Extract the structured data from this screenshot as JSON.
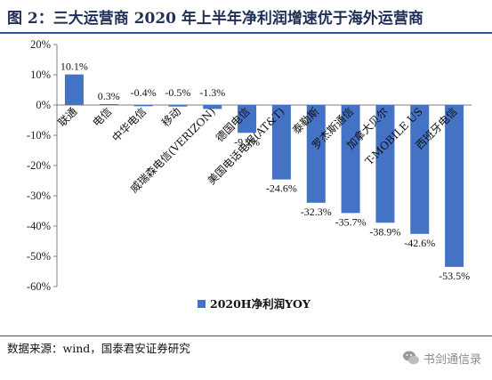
{
  "header": {
    "title": "图 2：三大运营商 2020 年上半年净利润增速优于海外运营商"
  },
  "source": "数据来源：wind，国泰君安证券研究",
  "watermark": {
    "text": "书剑通信录",
    "icon": "wechat-icon"
  },
  "chart_data": {
    "type": "bar",
    "categories": [
      "联通",
      "电信",
      "中华电信",
      "移动",
      "威瑞森电信(VERIZON)",
      "德国电信",
      "美国电话电报(AT&T)",
      "泰勒斯",
      "罗杰斯通信",
      "加拿大贝尔",
      "T-MOBILE US",
      "西班牙电信"
    ],
    "series": [
      {
        "name": "2020H净利润YOY",
        "values": [
          10.1,
          0.3,
          -0.4,
          -0.5,
          -1.3,
          -9.2,
          -24.6,
          -32.3,
          -35.7,
          -38.9,
          -42.6,
          -53.5
        ],
        "labels": [
          "10.1%",
          "0.3%",
          "-0.4%",
          "-0.5%",
          "-1.3%",
          "-9.2%",
          "-24.6%",
          "-32.3%",
          "-35.7%",
          "-38.9%",
          "-42.6%",
          "-53.5%"
        ]
      }
    ],
    "ylim": [
      -60,
      20
    ],
    "yticks": [
      20,
      10,
      0,
      -10,
      -20,
      -30,
      -40,
      -50,
      -60
    ],
    "ytick_labels": [
      "20%",
      "10%",
      "0%",
      "-10%",
      "-20%",
      "-30%",
      "-40%",
      "-50%",
      "-60%"
    ],
    "legend_position": "bottom",
    "grid": false,
    "bar_color": "#4472c4"
  }
}
